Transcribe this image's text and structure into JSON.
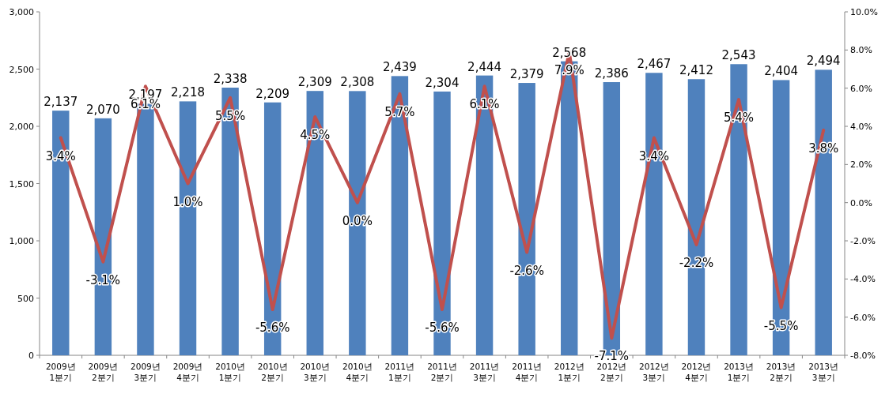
{
  "chart_data": {
    "type": "bar",
    "categories": [
      "2009년 1분기",
      "2009년 2분기",
      "2009년 3분기",
      "2009년 4분기",
      "2010년 1분기",
      "2010년 2분기",
      "2010년 3분기",
      "2010년 4분기",
      "2011년 1분기",
      "2011년 2분기",
      "2011년 3분기",
      "2011년 4분기",
      "2012년 1분기",
      "2012년 2분기",
      "2012년 3분기",
      "2012년 4분기",
      "2013년 1분기",
      "2013년 2분기",
      "2013년 3분기"
    ],
    "series": [
      {
        "color": "#4f81bd",
        "values": [
          2137,
          2070,
          2197,
          2218,
          2338,
          2209,
          2309,
          2308,
          2439,
          2304,
          2444,
          2379,
          2568,
          2386,
          2467,
          2412,
          2543,
          2404,
          2494
        ],
        "value_labels": [
          "2,137",
          "2,070",
          "2,197",
          "2,218",
          "2,338",
          "2,209",
          "2,309",
          "2,308",
          "2,439",
          "2,304",
          "2,444",
          "2,379",
          "2,568",
          "2,386",
          "2,467",
          "2,412",
          "2,543",
          "2,404",
          "2,494"
        ]
      },
      {
        "type": "line",
        "axis": "y2",
        "color": "#c0504d",
        "values": [
          3.4,
          -3.1,
          6.1,
          1.0,
          5.5,
          -5.6,
          4.5,
          0.0,
          5.7,
          -5.6,
          6.1,
          -2.6,
          7.9,
          -7.1,
          3.4,
          -2.2,
          5.4,
          -5.5,
          3.8
        ],
        "value_labels": [
          "3.4%",
          "-3.1%",
          "6.1%",
          "1.0%",
          "5.5%",
          "-5.6%",
          "4.5%",
          "0.0%",
          "5.7%",
          "-5.6%",
          "6.1%",
          "-2.6%",
          "7.9%",
          "-7.1%",
          "3.4%",
          "-2.2%",
          "5.4%",
          "-5.5%",
          "3.8%"
        ]
      }
    ],
    "ylim": [
      0,
      3000
    ],
    "yticks": [
      0,
      500,
      {
        "value": 1000,
        "label": "1,000"
      },
      {
        "value": 1500,
        "label": "1,500"
      },
      {
        "value": 2000,
        "label": "2,000"
      },
      {
        "value": 2500,
        "label": "2,500"
      },
      {
        "value": 3000,
        "label": "3,000"
      }
    ],
    "y2lim": [
      -8,
      10
    ],
    "y2ticks": [
      {
        "value": -8,
        "label": "-8.0%"
      },
      {
        "value": -6,
        "label": "-6.0%"
      },
      {
        "value": -4,
        "label": "-4.0%"
      },
      {
        "value": -2,
        "label": "-2.0%"
      },
      {
        "value": 0,
        "label": "0.0%"
      },
      {
        "value": 2,
        "label": "2.0%"
      },
      {
        "value": 4,
        "label": "4.0%"
      },
      {
        "value": 6,
        "label": "6.0%"
      },
      {
        "value": 8,
        "label": "8.0%"
      },
      {
        "value": 10,
        "label": "10.0%"
      }
    ],
    "grid": false
  }
}
